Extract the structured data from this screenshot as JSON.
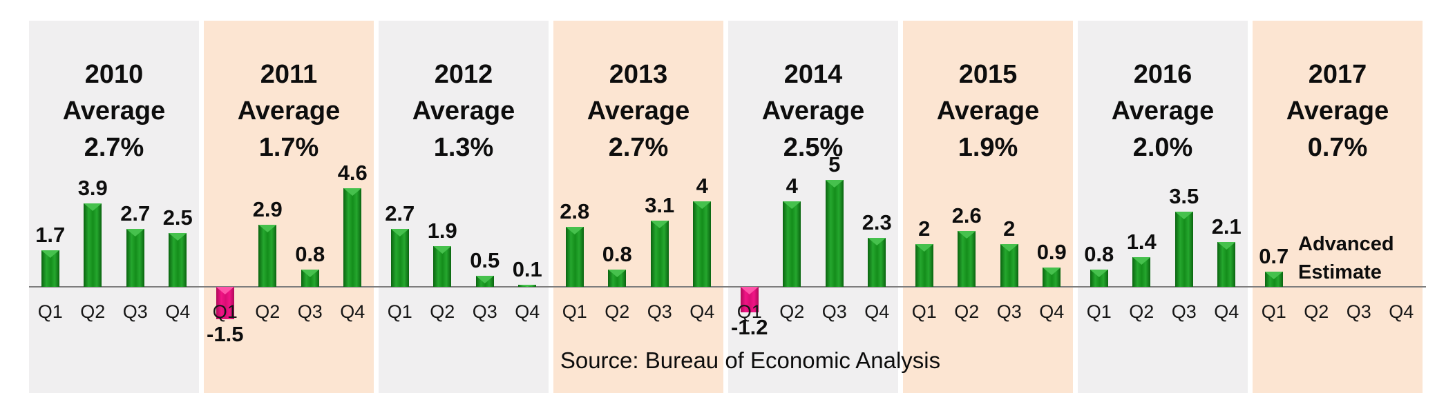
{
  "chart_data": {
    "type": "bar",
    "unit": "%",
    "grid": false,
    "legend": false,
    "ylim": [
      -1.5,
      5
    ],
    "x_tick_labels": [
      "Q1",
      "Q2",
      "Q3",
      "Q4"
    ],
    "average_word": "Average",
    "years": [
      {
        "year": "2010",
        "average": "2.7%",
        "values": [
          1.7,
          3.9,
          2.7,
          2.5
        ]
      },
      {
        "year": "2011",
        "average": "1.7%",
        "values": [
          -1.5,
          2.9,
          0.8,
          4.6
        ]
      },
      {
        "year": "2012",
        "average": "1.3%",
        "values": [
          2.7,
          1.9,
          0.5,
          0.1
        ]
      },
      {
        "year": "2013",
        "average": "2.7%",
        "values": [
          2.8,
          0.8,
          3.1,
          4
        ]
      },
      {
        "year": "2014",
        "average": "2.5%",
        "values": [
          -1.2,
          4,
          5,
          2.3
        ]
      },
      {
        "year": "2015",
        "average": "1.9%",
        "values": [
          2,
          2.6,
          2,
          0.9
        ]
      },
      {
        "year": "2016",
        "average": "2.0%",
        "values": [
          0.8,
          1.4,
          3.5,
          2.1
        ]
      },
      {
        "year": "2017",
        "average": "0.7%",
        "values": [
          0.7,
          null,
          null,
          null
        ],
        "annotation": [
          "Advanced",
          "Estimate"
        ]
      }
    ],
    "source": "Source: Bureau of Economic Analysis",
    "colors": {
      "positive_bar": "#148d1b",
      "negative_bar": "#ed0f7d",
      "panel_gray": "#f0eff0",
      "panel_peach": "#fce5d2",
      "axis": "#7d7d7d",
      "text": "#0d0d0d"
    }
  }
}
